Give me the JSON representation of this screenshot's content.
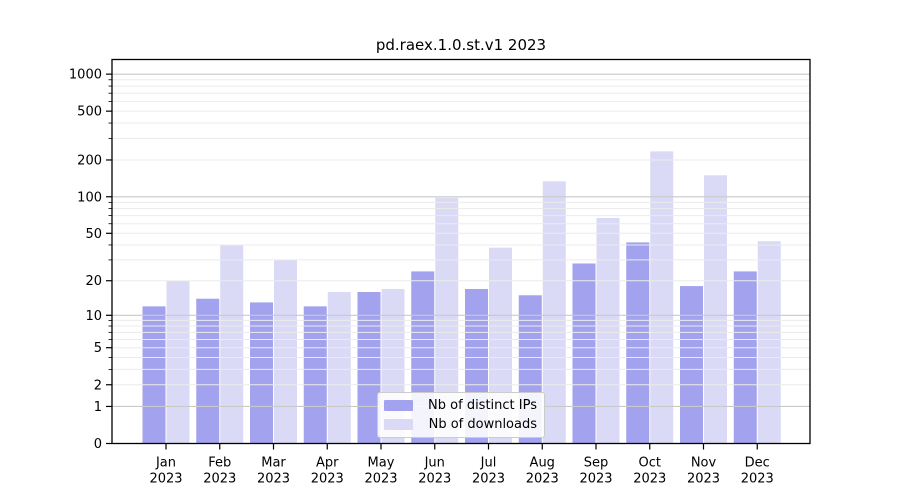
{
  "chart_data": {
    "type": "bar",
    "title": "pd.raex.1.0.st.v1 2023",
    "categories": [
      "Jan",
      "Feb",
      "Mar",
      "Apr",
      "May",
      "Jun",
      "Jul",
      "Aug",
      "Sep",
      "Oct",
      "Nov",
      "Dec"
    ],
    "year": "2023",
    "series": [
      {
        "name": "Nb of distinct IPs",
        "color": "#a2a2ee",
        "values": [
          12,
          14,
          13,
          12,
          16,
          24,
          17,
          15,
          28,
          42,
          18,
          24
        ]
      },
      {
        "name": "Nb of downloads",
        "color": "#dadaf6",
        "values": [
          20,
          40,
          30,
          16,
          17,
          98,
          38,
          134,
          67,
          235,
          150,
          43
        ]
      }
    ],
    "xlabel": "",
    "ylabel": "",
    "yscale": "log(value+1)",
    "yticks": [
      0,
      1,
      2,
      5,
      10,
      20,
      50,
      100,
      200,
      500,
      1000
    ],
    "ylim": [
      0,
      1300
    ],
    "grid": true,
    "grid_major_color": "#c9c9c9",
    "grid_minor_color": "#ebebeb",
    "axis_color": "#000000",
    "legend_position": "lower center"
  }
}
